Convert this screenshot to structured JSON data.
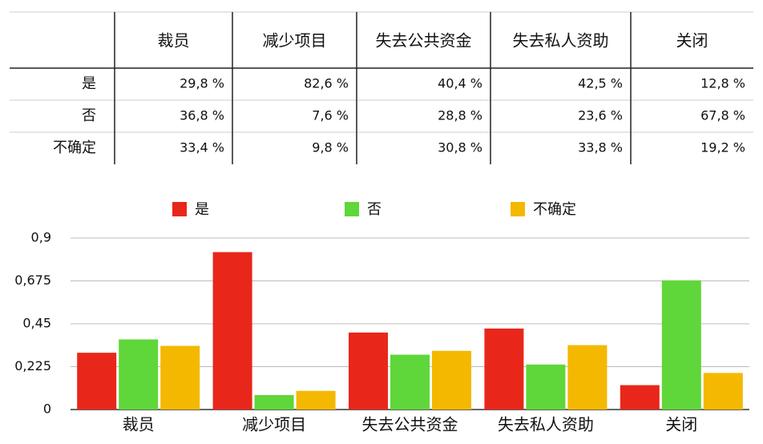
{
  "table": {
    "columns": [
      "裁员",
      "减少项目",
      "失去公共资金",
      "失去私人资助",
      "关闭"
    ],
    "rows": [
      {
        "label": "是",
        "cells": [
          "29,8 %",
          "82,6 %",
          "40,4 %",
          "42,5 %",
          "12,8 %"
        ]
      },
      {
        "label": "否",
        "cells": [
          "36,8 %",
          "7,6 %",
          "28,8 %",
          "23,6 %",
          "67,8 %"
        ]
      },
      {
        "label": "不确定",
        "cells": [
          "33,4 %",
          "9,8 %",
          "30,8 %",
          "33,8 %",
          "19,2 %"
        ]
      }
    ]
  },
  "chart_data": {
    "type": "bar",
    "categories": [
      "裁员",
      "减少项目",
      "失去公共资金",
      "失去私人资助",
      "关闭"
    ],
    "series": [
      {
        "name": "是",
        "color": "#e8271a",
        "values": [
          0.298,
          0.826,
          0.404,
          0.425,
          0.128
        ]
      },
      {
        "name": "否",
        "color": "#5fd63a",
        "values": [
          0.368,
          0.076,
          0.288,
          0.236,
          0.678
        ]
      },
      {
        "name": "不确定",
        "color": "#f5b800",
        "values": [
          0.334,
          0.098,
          0.308,
          0.338,
          0.192
        ]
      }
    ],
    "ylim": [
      0,
      0.9
    ],
    "yticks": [
      0,
      {
        "value": 0.225,
        "label": "0,225"
      },
      {
        "value": 0.45,
        "label": "0,45"
      },
      {
        "value": 0.675,
        "label": "0,675"
      },
      {
        "value": 0.9,
        "label": "0,9"
      }
    ],
    "grid": true,
    "legend": "top"
  }
}
